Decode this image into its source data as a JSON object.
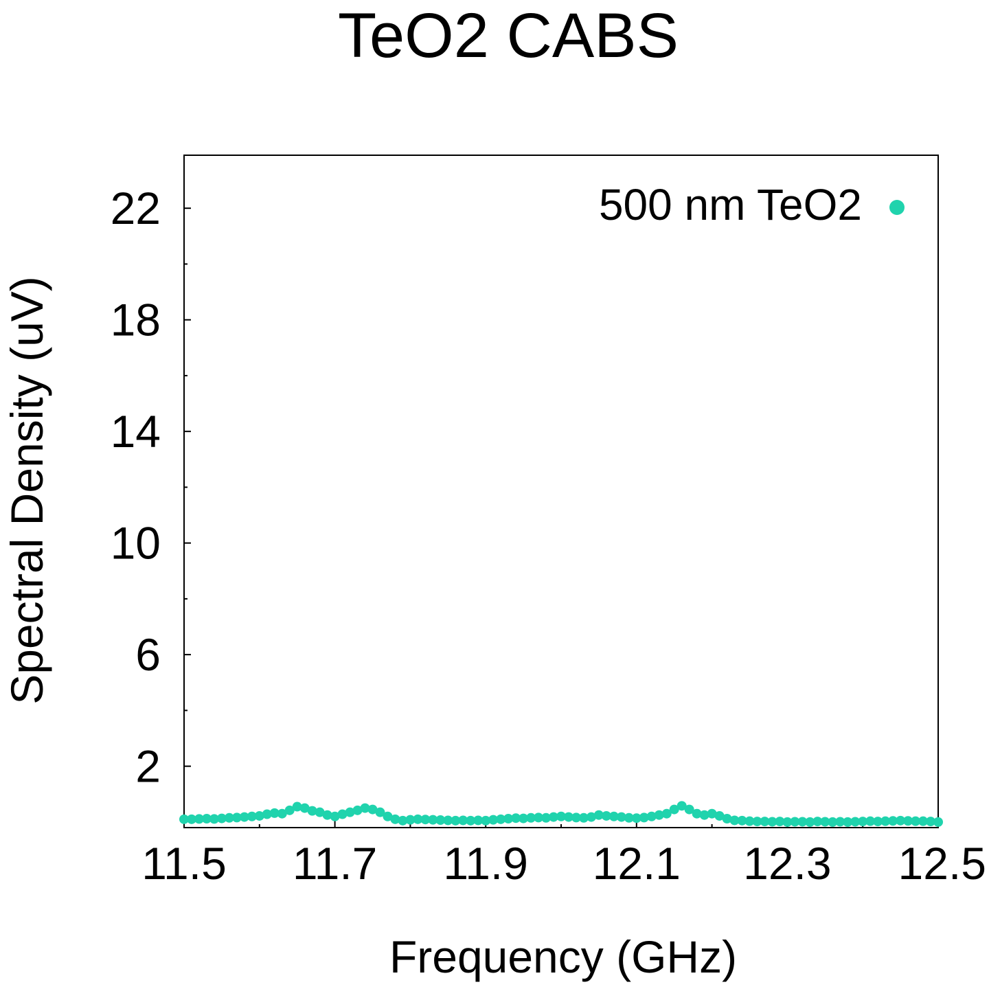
{
  "chart_data": {
    "type": "scatter",
    "title": "TeO2 CABS",
    "xlabel": "Frequency (GHz)",
    "ylabel": "Spectral Density (uV)",
    "xlim": [
      11.5,
      12.5
    ],
    "ylim": [
      -0.2,
      23.9
    ],
    "x_ticks": [
      "11.5",
      "11.7",
      "11.9",
      "12.1",
      "12.3",
      "12.5"
    ],
    "x_tick_values": [
      11.5,
      11.7,
      11.9,
      12.1,
      12.3,
      12.5
    ],
    "x_minor_tick_values": [
      11.6,
      11.8,
      12.0,
      12.2,
      12.4
    ],
    "y_ticks": [
      "2",
      "6",
      "10",
      "14",
      "18",
      "22"
    ],
    "y_tick_values": [
      2,
      6,
      10,
      14,
      18,
      22
    ],
    "y_minor_tick_values": [
      4,
      8,
      12,
      16,
      20
    ],
    "grid": false,
    "legend_position": "top-right",
    "series": [
      {
        "name": "500 nm TeO2",
        "color": "#20d3ad",
        "marker": "circle",
        "x": [
          11.5,
          11.51,
          11.52,
          11.53,
          11.54,
          11.55,
          11.56,
          11.57,
          11.58,
          11.59,
          11.6,
          11.61,
          11.62,
          11.63,
          11.64,
          11.65,
          11.66,
          11.67,
          11.68,
          11.69,
          11.7,
          11.71,
          11.72,
          11.73,
          11.74,
          11.75,
          11.76,
          11.77,
          11.78,
          11.79,
          11.8,
          11.81,
          11.82,
          11.83,
          11.84,
          11.85,
          11.86,
          11.87,
          11.88,
          11.89,
          11.9,
          11.91,
          11.92,
          11.93,
          11.94,
          11.95,
          11.96,
          11.97,
          11.98,
          11.99,
          12.0,
          12.01,
          12.02,
          12.03,
          12.04,
          12.05,
          12.06,
          12.07,
          12.08,
          12.09,
          12.1,
          12.11,
          12.12,
          12.13,
          12.14,
          12.15,
          12.16,
          12.17,
          12.18,
          12.19,
          12.2,
          12.21,
          12.22,
          12.23,
          12.24,
          12.25,
          12.26,
          12.27,
          12.28,
          12.29,
          12.3,
          12.31,
          12.32,
          12.33,
          12.34,
          12.35,
          12.36,
          12.37,
          12.38,
          12.39,
          12.4,
          12.41,
          12.42,
          12.43,
          12.44,
          12.45,
          12.46,
          12.47,
          12.48,
          12.49,
          12.5
        ],
        "y": [
          0.1,
          0.1,
          0.11,
          0.12,
          0.11,
          0.13,
          0.15,
          0.16,
          0.18,
          0.2,
          0.22,
          0.28,
          0.32,
          0.3,
          0.42,
          0.55,
          0.5,
          0.4,
          0.35,
          0.25,
          0.2,
          0.28,
          0.35,
          0.42,
          0.5,
          0.45,
          0.35,
          0.2,
          0.1,
          0.05,
          0.08,
          0.1,
          0.09,
          0.08,
          0.07,
          0.06,
          0.05,
          0.06,
          0.05,
          0.06,
          0.05,
          0.08,
          0.1,
          0.12,
          0.14,
          0.13,
          0.15,
          0.16,
          0.15,
          0.18,
          0.2,
          0.18,
          0.16,
          0.15,
          0.18,
          0.25,
          0.22,
          0.2,
          0.18,
          0.15,
          0.14,
          0.16,
          0.2,
          0.25,
          0.3,
          0.45,
          0.58,
          0.45,
          0.3,
          0.25,
          0.3,
          0.22,
          0.12,
          0.06,
          0.05,
          0.03,
          0.02,
          0.02,
          0.01,
          0.02,
          0.0,
          0.01,
          0.01,
          0.0,
          0.02,
          0.01,
          0.0,
          0.01,
          0.0,
          0.01,
          0.02,
          0.03,
          0.02,
          0.03,
          0.04,
          0.05,
          0.04,
          0.03,
          0.03,
          0.02,
          0.0
        ]
      }
    ]
  }
}
